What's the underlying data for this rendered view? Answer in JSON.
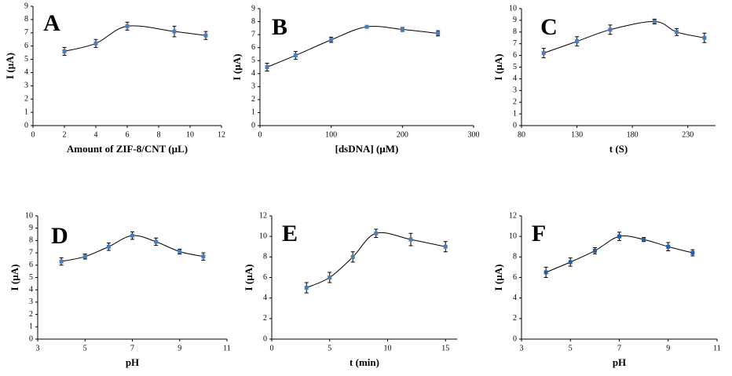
{
  "chart_data": [
    {
      "type": "line",
      "title": "A",
      "x_label": "Amount of ZIF-8/CNT (µL)",
      "y_label": "I (µA)",
      "color": "#4a7ebb",
      "x": [
        2,
        4,
        6,
        9,
        11
      ],
      "values": [
        5.6,
        6.2,
        7.5,
        7.1,
        6.8
      ],
      "errors": [
        0.3,
        0.3,
        0.3,
        0.4,
        0.3
      ],
      "xlim": [
        0,
        12
      ],
      "xticks": [
        0,
        2,
        4,
        6,
        8,
        10,
        12
      ],
      "ylim": [
        0,
        9
      ],
      "yticks": [
        0,
        1,
        2,
        3,
        4,
        5,
        6,
        7,
        8,
        9
      ]
    },
    {
      "type": "line",
      "title": "B",
      "x_label": "[dsDNA] (µM)",
      "y_label": "I (µA)",
      "color": "#4a7ebb",
      "x": [
        10,
        50,
        100,
        150,
        200,
        250
      ],
      "values": [
        4.5,
        5.4,
        6.6,
        7.6,
        7.4,
        7.1
      ],
      "errors": [
        0.3,
        0.3,
        0.2,
        0.1,
        0.15,
        0.2
      ],
      "xlim": [
        0,
        300
      ],
      "xticks": [
        0,
        100,
        200,
        300
      ],
      "ylim": [
        0,
        9
      ],
      "yticks": [
        0,
        1,
        2,
        3,
        4,
        5,
        6,
        7,
        8,
        9
      ]
    },
    {
      "type": "line",
      "title": "C",
      "x_label": "t (S)",
      "y_label": "I (µA)",
      "color": "#4a7ebb",
      "x": [
        100,
        130,
        160,
        200,
        220,
        245
      ],
      "values": [
        6.2,
        7.2,
        8.2,
        8.9,
        8.0,
        7.5
      ],
      "errors": [
        0.4,
        0.4,
        0.4,
        0.2,
        0.3,
        0.4
      ],
      "xlim": [
        80,
        255
      ],
      "xticks": [
        80,
        130,
        180,
        230
      ],
      "ylim": [
        0,
        10
      ],
      "yticks": [
        0,
        1,
        2,
        3,
        4,
        5,
        6,
        7,
        8,
        9,
        10
      ]
    },
    {
      "type": "line",
      "title": "D",
      "x_label": "pH",
      "y_label": "I (µA)",
      "color": "#4a7ebb",
      "x": [
        4,
        5,
        6,
        7,
        8,
        9,
        10
      ],
      "values": [
        6.3,
        6.7,
        7.5,
        8.4,
        7.9,
        7.1,
        6.7
      ],
      "errors": [
        0.3,
        0.2,
        0.3,
        0.3,
        0.3,
        0.2,
        0.3
      ],
      "xlim": [
        3,
        11
      ],
      "xticks": [
        3,
        5,
        7,
        9,
        11
      ],
      "ylim": [
        0,
        10
      ],
      "yticks": [
        0,
        1,
        2,
        3,
        4,
        5,
        6,
        7,
        8,
        9,
        10
      ]
    },
    {
      "type": "line",
      "title": "E",
      "x_label": "t (min)",
      "y_label": "I (µA)",
      "color": "#4a7ebb",
      "x": [
        3,
        5,
        7,
        9,
        12,
        15
      ],
      "values": [
        5.0,
        6.0,
        8.0,
        10.3,
        9.7,
        9.0
      ],
      "errors": [
        0.5,
        0.5,
        0.5,
        0.4,
        0.6,
        0.5
      ],
      "xlim": [
        0,
        16
      ],
      "xticks": [
        0,
        5,
        10,
        15
      ],
      "ylim": [
        0,
        12
      ],
      "yticks": [
        0,
        2,
        4,
        6,
        8,
        10,
        12
      ]
    },
    {
      "type": "line",
      "title": "F",
      "x_label": "pH",
      "y_label": "I (µA)",
      "color": "#1f5fa8",
      "x": [
        4,
        5,
        6,
        7,
        8,
        9,
        10
      ],
      "values": [
        6.5,
        7.5,
        8.6,
        10.0,
        9.7,
        9.0,
        8.4
      ],
      "errors": [
        0.5,
        0.4,
        0.3,
        0.4,
        0.2,
        0.4,
        0.3
      ],
      "xlim": [
        3,
        11
      ],
      "xticks": [
        3,
        5,
        7,
        9,
        11
      ],
      "ylim": [
        0,
        12
      ],
      "yticks": [
        0,
        2,
        4,
        6,
        8,
        10,
        12
      ]
    }
  ]
}
